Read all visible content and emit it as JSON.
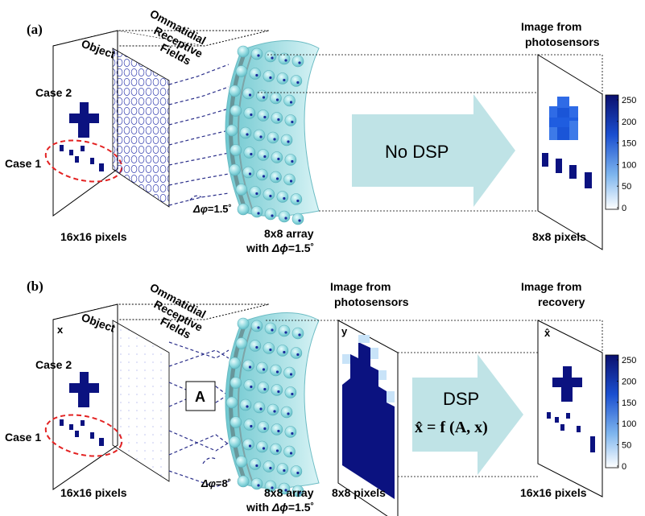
{
  "panel_a": {
    "label": "(a)",
    "object_label": "Object",
    "fields_label_1": "Ommatidial",
    "fields_label_2": "Receptive",
    "fields_label_3": "Fields",
    "case2": "Case 2",
    "case1": "Case 1",
    "dphi_prefix": "Δφ",
    "dphi_value": "=1.5˚",
    "input_caption": "16x16 pixels",
    "array_caption_1": "8x8 array",
    "array_caption_2_prefix": "with ",
    "array_caption_2_sym": "Δϕ",
    "array_caption_2_val": "=1.5˚",
    "arrow_text": "No DSP",
    "output_title_1": "Image from",
    "output_title_2": "photosensors",
    "output_caption": "8x8 pixels"
  },
  "panel_b": {
    "label": "(b)",
    "object_label": "Object",
    "x_label": "x",
    "fields_label_1": "Ommatidial",
    "fields_label_2": "Receptive",
    "fields_label_3": "Fields",
    "case2": "Case 2",
    "case1": "Case 1",
    "matrix_label": "A",
    "dphi_prefix": "Δφ",
    "dphi_value": "=8˚",
    "input_caption": "16x16 pixels",
    "array_caption_1": "8x8 array",
    "array_caption_2_prefix": "with ",
    "array_caption_2_sym": "Δϕ",
    "array_caption_2_val": "=1.5˚",
    "mid_title_1": "Image from",
    "mid_title_2": "photosensors",
    "y_label": "y",
    "mid_caption": "8x8 pixels",
    "arrow_text": "DSP",
    "equation": "x̂ = f (A, x)",
    "output_title_1": "Image from",
    "output_title_2": "recovery",
    "xhat_label": "x̂",
    "output_caption": "16x16 pixels"
  },
  "colorbar": {
    "ticks": [
      "250",
      "200",
      "150",
      "100",
      "50",
      "0"
    ],
    "color_high": "#0a0f6e",
    "color_low": "#ffffff"
  },
  "colors": {
    "navy": "#0b1280",
    "arrow_fill": "#bfe3e6",
    "lens": "#8ed6dc",
    "case_ellipse": "#e32222",
    "dashed_line": "#2b2f8a"
  }
}
